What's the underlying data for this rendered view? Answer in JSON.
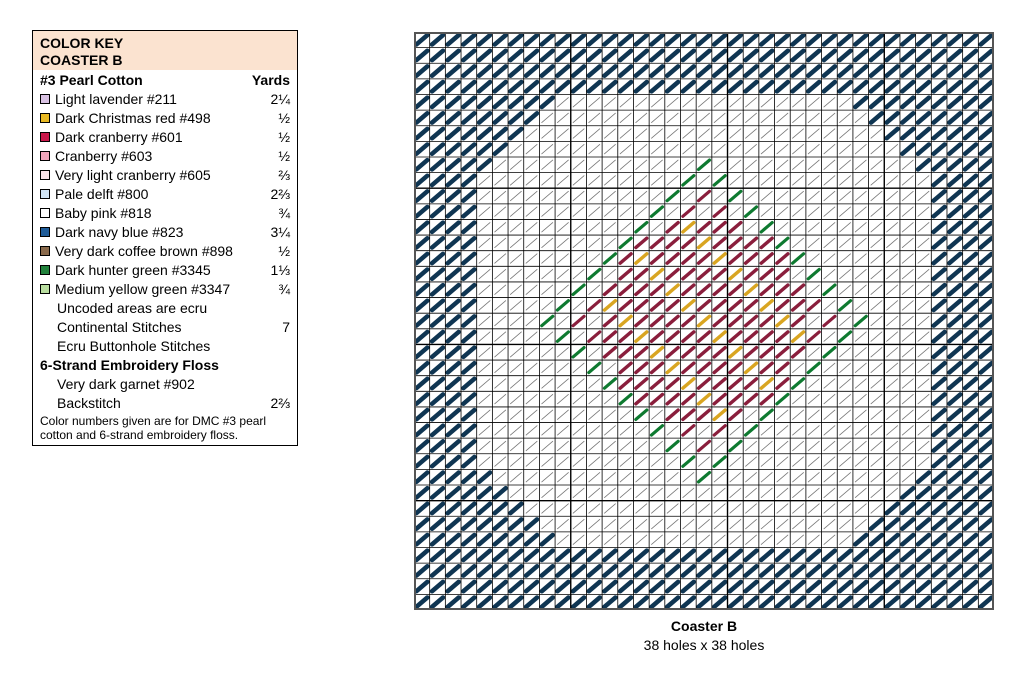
{
  "key": {
    "title": "COLOR KEY",
    "subtitle": "COASTER B",
    "section1_title": "#3 Pearl Cotton",
    "yards_header": "Yards",
    "items": [
      {
        "label": "Light lavender #211",
        "yards": "2¼",
        "color": "#d9c2e3"
      },
      {
        "label": "Dark Christmas red #498",
        "yards": "½",
        "color": "#e8b923"
      },
      {
        "label": "Dark cranberry #601",
        "yards": "½",
        "color": "#c8174a"
      },
      {
        "label": "Cranberry #603",
        "yards": "½",
        "color": "#f2a7bd"
      },
      {
        "label": "Very light cranberry #605",
        "yards": "⅔",
        "color": "#fbe4ea"
      },
      {
        "label": "Pale delft #800",
        "yards": "2⅔",
        "color": "#cfe3f4"
      },
      {
        "label": "Baby pink #818",
        "yards": "¾",
        "color": "#ffffff"
      },
      {
        "label": "Dark navy blue #823",
        "yards": "3¼",
        "color": "#1f5c99"
      },
      {
        "label": "Very dark coffee brown #898",
        "yards": "½",
        "color": "#8a6a4c"
      },
      {
        "label": "Dark hunter green #3345",
        "yards": "1⅓",
        "color": "#22823c"
      },
      {
        "label": "Medium yellow green #3347",
        "yards": "¾",
        "color": "#b9dea0"
      }
    ],
    "uncoded_line1": "Uncoded areas are ecru",
    "uncoded_line2": "Continental Stitches",
    "uncoded_yards": "7",
    "buttonhole": "Ecru Buttonhole Stitches",
    "section2_title": "6-Strand Embroidery Floss",
    "garnet_line1": "Very dark garnet #902",
    "garnet_line2": "Backstitch",
    "garnet_yards": "2⅔",
    "note": "Color numbers given are for DMC #3 pearl cotton and 6-strand embroidery floss."
  },
  "chart": {
    "title": "Coaster B",
    "size_text": "38 holes x 38 holes",
    "holes": 38,
    "colors": {
      "navy": "#0f3552",
      "green": "#0e7a30",
      "garnet": "#8a1e3c",
      "gold": "#d9a521",
      "brown": "#7a5a3a",
      "ecru_stitch": "#777777",
      "grid": "#000000"
    }
  }
}
